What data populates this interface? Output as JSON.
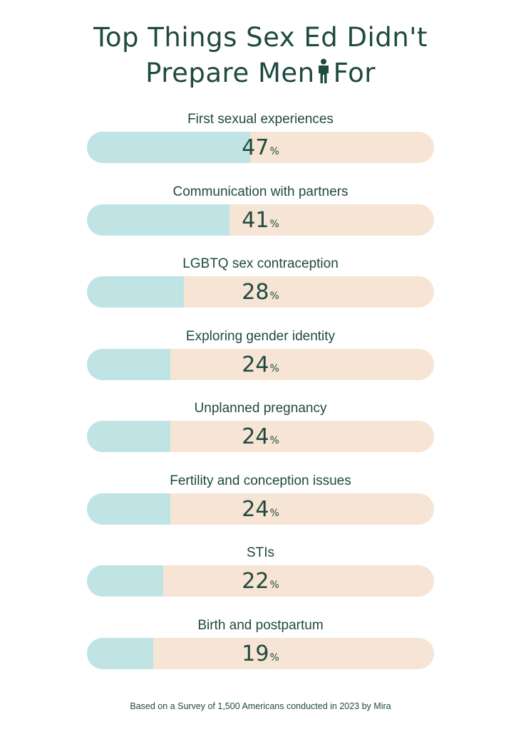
{
  "title": {
    "line1": "Top Things Sex Ed Didn't",
    "line2_before": "Prepare Men",
    "line2_after": "For",
    "icon": "man-icon"
  },
  "colors": {
    "text": "#1f4a40",
    "bar_fill": "#c0e4e4",
    "bar_track": "#f6e4d4"
  },
  "chart_data": {
    "type": "bar",
    "orientation": "horizontal",
    "categories": [
      "First sexual experiences",
      "Communication with partners",
      "LGBTQ sex contraception",
      "Exploring gender identity",
      "Unplanned pregnancy",
      "Fertility and conception issues",
      "STIs",
      "Birth and postpartum"
    ],
    "values": [
      47,
      41,
      28,
      24,
      24,
      24,
      22,
      19
    ],
    "value_suffix": "%",
    "xlim": [
      0,
      100
    ]
  },
  "footnote": "Based on a Survey of 1,500 Americans conducted in 2023 by Mira"
}
